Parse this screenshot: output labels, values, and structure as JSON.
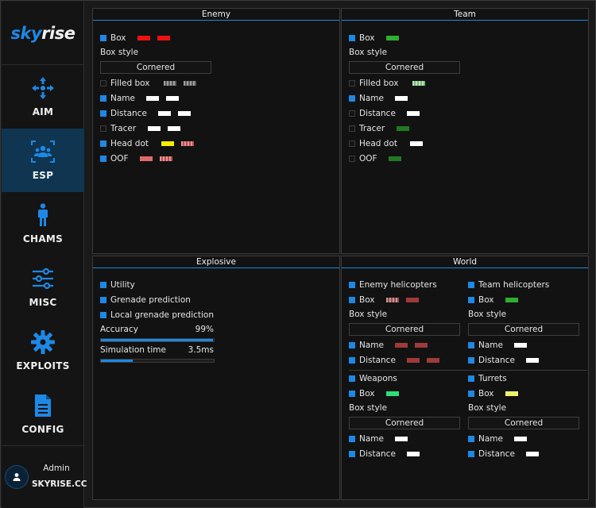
{
  "app": {
    "logo_part1": "sky",
    "logo_part2": "rise"
  },
  "nav": [
    {
      "id": "aim",
      "label": "AIM",
      "icon": "aim-icon",
      "active": false
    },
    {
      "id": "esp",
      "label": "ESP",
      "icon": "esp-icon",
      "active": true
    },
    {
      "id": "chams",
      "label": "CHAMS",
      "icon": "person-icon",
      "active": false
    },
    {
      "id": "misc",
      "label": "MISC",
      "icon": "sliders-icon",
      "active": false
    },
    {
      "id": "exploits",
      "label": "EXPLOITS",
      "icon": "gear-icon",
      "active": false
    },
    {
      "id": "config",
      "label": "CONFIG",
      "icon": "document-icon",
      "active": false
    }
  ],
  "user": {
    "name": "Admin",
    "brand": "SKYRISE.CC",
    "icon": "user-icon"
  },
  "colors": {
    "accent": "#1e88e5",
    "red": "#ee1111",
    "pink": "#e06a6a",
    "green": "#2fae2f",
    "light_green": "#8fd68f",
    "dark_green": "#1f7a1f",
    "yellow": "#f4f000",
    "white": "#ffffff",
    "gray": "#8a8a8a",
    "dark_red": "#9e3a3a",
    "bright_green": "#2be07a",
    "light_yellow": "#eef26a"
  },
  "enemy": {
    "title": "Enemy",
    "box": "Box",
    "box_style_label": "Box style",
    "box_style_value": "Cornered",
    "filled_box": "Filled box",
    "name": "Name",
    "distance": "Distance",
    "tracer": "Tracer",
    "head_dot": "Head dot",
    "oof": "OOF"
  },
  "team": {
    "title": "Team",
    "box": "Box",
    "box_style_label": "Box style",
    "box_style_value": "Cornered",
    "filled_box": "Filled box",
    "name": "Name",
    "distance": "Distance",
    "tracer": "Tracer",
    "head_dot": "Head dot",
    "oof": "OOF"
  },
  "explosive": {
    "title": "Explosive",
    "utility": "Utility",
    "grenade_prediction": "Grenade prediction",
    "local_grenade_prediction": "Local grenade prediction",
    "accuracy_label": "Accuracy",
    "accuracy_value": "99%",
    "accuracy_fraction": 0.99,
    "sim_time_label": "Simulation time",
    "sim_time_value": "3.5ms",
    "sim_time_fraction": 0.28
  },
  "world": {
    "title": "World",
    "enemy_helicopters": "Enemy helicopters",
    "team_helicopters": "Team helicopters",
    "weapons": "Weapons",
    "turrets": "Turrets",
    "box": "Box",
    "box_style_label": "Box style",
    "box_style_value": "Cornered",
    "name": "Name",
    "distance": "Distance"
  }
}
